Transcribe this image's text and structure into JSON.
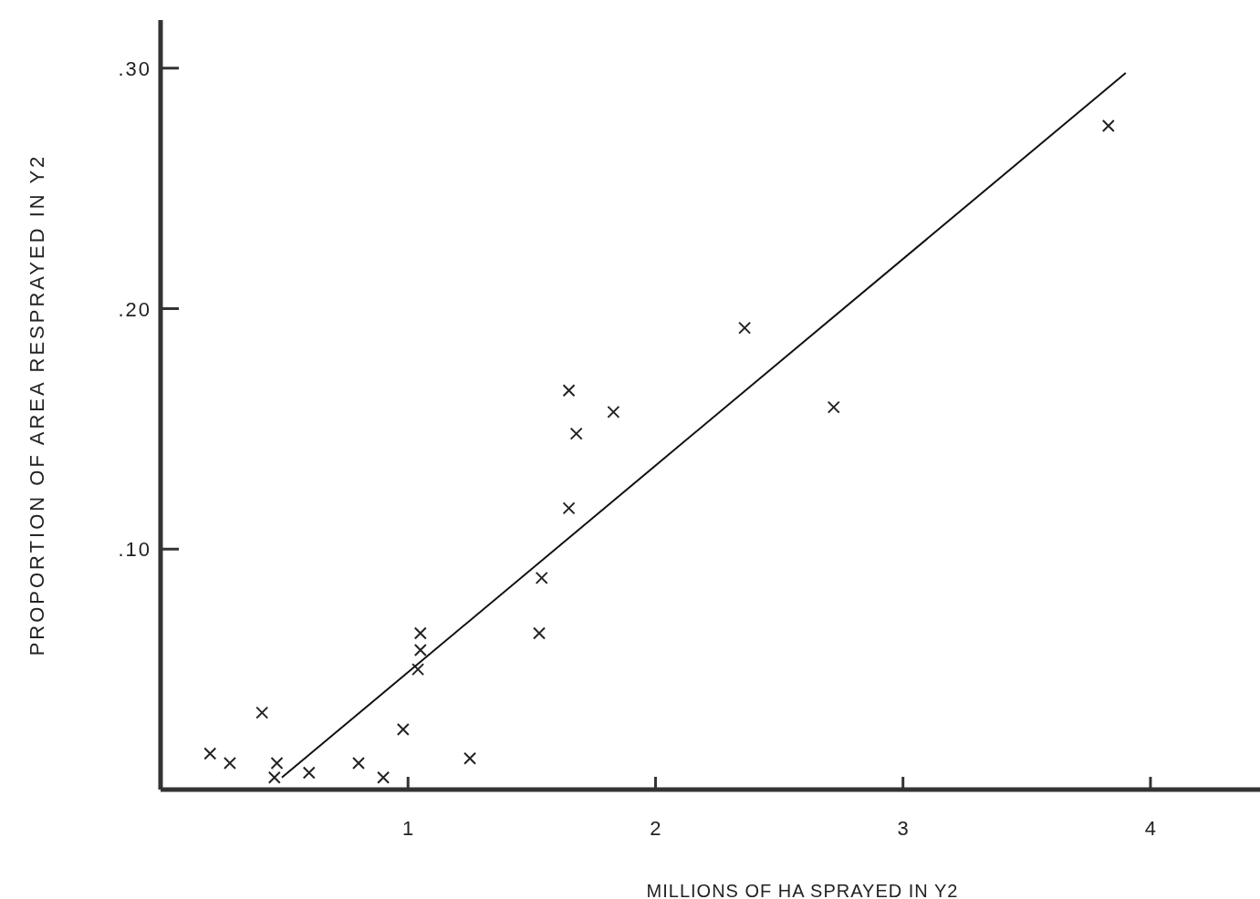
{
  "chart_data": {
    "type": "scatter",
    "xlabel": "MILLIONS OF HA SPRAYED IN Y2",
    "ylabel": "PROPORTION OF AREA RESPRAYED IN Y2",
    "xlim": [
      0,
      4.45
    ],
    "ylim": [
      0,
      0.32
    ],
    "xticks": [
      1,
      2,
      3,
      4
    ],
    "yticks": [
      {
        "value": 0.1,
        "label": ".10"
      },
      {
        "value": 0.2,
        "label": ".20"
      },
      {
        "value": 0.3,
        "label": ".30"
      }
    ],
    "grid": false,
    "marker": "cross",
    "series": [
      {
        "color": "#222222",
        "x": [
          0.2,
          0.28,
          0.41,
          0.47,
          0.46,
          0.6,
          0.8,
          0.9,
          0.98,
          1.05,
          1.05,
          1.04,
          1.25,
          1.53,
          1.54,
          1.65,
          1.65,
          1.68,
          1.83,
          2.36,
          2.72,
          3.83
        ],
        "values": [
          0.015,
          0.011,
          0.032,
          0.011,
          0.005,
          0.007,
          0.011,
          0.005,
          0.025,
          0.065,
          0.058,
          0.05,
          0.013,
          0.065,
          0.088,
          0.117,
          0.166,
          0.148,
          0.157,
          0.192,
          0.159,
          0.276
        ]
      },
      {
        "type": "line",
        "color": "#111111",
        "marker": "none",
        "line_style": "solid",
        "x": [
          0.49,
          3.9
        ],
        "values": [
          0.005,
          0.298
        ]
      }
    ]
  }
}
